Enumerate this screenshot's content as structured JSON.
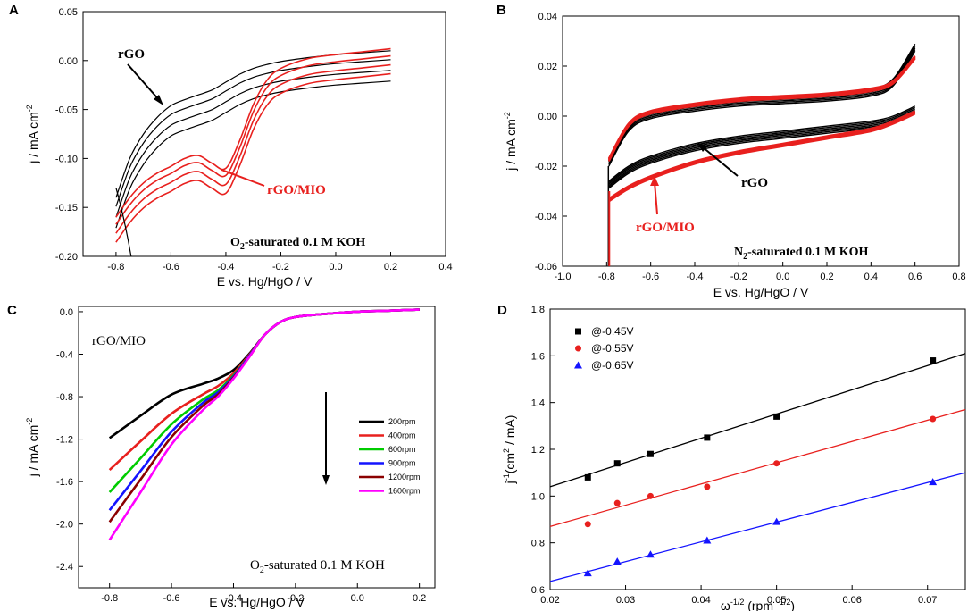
{
  "chart_data": [
    {
      "id": "A",
      "panel_label": "A",
      "type": "line",
      "xlabel": "E vs. Hg/HgO / V",
      "ylabel": "j / mA cm-2",
      "ylabel_main": "j / mA cm",
      "ylabel_sup": "-2",
      "xlim": [
        -0.92,
        0.4
      ],
      "ylim": [
        -0.2,
        0.05
      ],
      "xticks": [
        -0.8,
        -0.6,
        -0.4,
        -0.2,
        0.0,
        0.2,
        0.4
      ],
      "xtick_labels": [
        "-0.8",
        "-0.6",
        "-0.4",
        "-0.2",
        "0.0",
        "0.2",
        "0.4"
      ],
      "yticks": [
        -0.2,
        -0.15,
        -0.1,
        -0.05,
        0.0,
        0.05
      ],
      "ytick_labels": [
        "-0.20",
        "-0.15",
        "-0.10",
        "-0.05",
        "0.00",
        "0.05"
      ],
      "condition": "O2-saturated 0.1 M KOH",
      "condition_parts": [
        "O",
        "2",
        "-saturated 0.1 M KOH"
      ],
      "annotations": [
        "rGO",
        "rGO/MIO"
      ],
      "series": [
        {
          "name": "rGO",
          "color": "#000000",
          "x": [
            -0.8,
            -0.75,
            -0.7,
            -0.65,
            -0.6,
            -0.55,
            -0.5,
            -0.45,
            -0.4,
            -0.35,
            -0.3,
            -0.25,
            -0.2,
            -0.1,
            0.0,
            0.1,
            0.2
          ],
          "y": [
            -0.14,
            -0.1,
            -0.075,
            -0.058,
            -0.046,
            -0.04,
            -0.035,
            -0.03,
            -0.022,
            -0.014,
            -0.008,
            -0.004,
            -0.001,
            0.003,
            0.006,
            0.008,
            0.01
          ]
        },
        {
          "name": "rGO/MIO",
          "color": "#e8201e",
          "x": [
            -0.8,
            -0.75,
            -0.7,
            -0.65,
            -0.6,
            -0.55,
            -0.5,
            -0.45,
            -0.4,
            -0.35,
            -0.3,
            -0.25,
            -0.2,
            -0.1,
            0.0,
            0.1,
            0.2
          ],
          "y": [
            -0.16,
            -0.14,
            -0.125,
            -0.115,
            -0.108,
            -0.1,
            -0.097,
            -0.105,
            -0.11,
            -0.082,
            -0.045,
            -0.02,
            -0.008,
            0.002,
            0.006,
            0.009,
            0.012
          ]
        }
      ]
    },
    {
      "id": "B",
      "panel_label": "B",
      "type": "line",
      "xlabel": "E vs. Hg/HgO / V",
      "ylabel": "j / mA cm-2",
      "ylabel_main": "j / mA cm",
      "ylabel_sup": "-2",
      "xlim": [
        -1.0,
        0.8
      ],
      "ylim": [
        -0.06,
        0.04
      ],
      "xticks": [
        -1.0,
        -0.8,
        -0.6,
        -0.4,
        -0.2,
        0.0,
        0.2,
        0.4,
        0.6,
        0.8
      ],
      "xtick_labels": [
        "-1.0",
        "-0.8",
        "-0.6",
        "-0.4",
        "-0.2",
        "0.0",
        "0.2",
        "0.4",
        "0.6",
        "0.8"
      ],
      "yticks": [
        -0.06,
        -0.04,
        -0.02,
        0.0,
        0.02,
        0.04
      ],
      "ytick_labels": [
        "-0.06",
        "-0.04",
        "-0.02",
        "0.00",
        "0.02",
        "0.04"
      ],
      "condition": "N2-saturated 0.1 M KOH",
      "condition_parts": [
        "N",
        "2",
        "-saturated 0.1 M KOH"
      ],
      "annotations": [
        "rGO",
        "rGO/MIO"
      ],
      "series": [
        {
          "name": "rGO anodic",
          "color": "#000000",
          "x": [
            -0.79,
            -0.7,
            -0.6,
            -0.4,
            -0.2,
            0.0,
            0.2,
            0.4,
            0.5,
            0.6
          ],
          "y": [
            -0.02,
            -0.006,
            -0.001,
            0.002,
            0.004,
            0.005,
            0.006,
            0.008,
            0.012,
            0.026
          ]
        },
        {
          "name": "rGO cathodic",
          "color": "#000000",
          "x": [
            -0.79,
            -0.7,
            -0.6,
            -0.4,
            -0.2,
            0.0,
            0.2,
            0.4,
            0.5,
            0.6
          ],
          "y": [
            -0.026,
            -0.02,
            -0.016,
            -0.011,
            -0.008,
            -0.006,
            -0.004,
            -0.002,
            0.0,
            0.004
          ]
        },
        {
          "name": "rGO/MIO anodic",
          "color": "#e8201e",
          "x": [
            -0.79,
            -0.7,
            -0.6,
            -0.4,
            -0.2,
            0.0,
            0.2,
            0.4,
            0.5,
            0.6
          ],
          "y": [
            -0.018,
            -0.004,
            0.001,
            0.004,
            0.006,
            0.007,
            0.008,
            0.01,
            0.013,
            0.023
          ]
        },
        {
          "name": "rGO/MIO cathodic",
          "color": "#e8201e",
          "x": [
            -0.79,
            -0.7,
            -0.6,
            -0.4,
            -0.2,
            0.0,
            0.2,
            0.4,
            0.5,
            0.6
          ],
          "y": [
            -0.033,
            -0.028,
            -0.024,
            -0.018,
            -0.014,
            -0.011,
            -0.008,
            -0.005,
            -0.002,
            0.002
          ]
        }
      ]
    },
    {
      "id": "C",
      "panel_label": "C",
      "type": "line",
      "xlabel": "E vs. Hg/HgO / V",
      "ylabel": "j / mA cm-2",
      "ylabel_main": "j / mA cm",
      "ylabel_sup": "-2",
      "xlim": [
        -0.9,
        0.25
      ],
      "ylim": [
        -2.6,
        0.05
      ],
      "xticks": [
        -0.8,
        -0.6,
        -0.4,
        -0.2,
        0.0,
        0.2
      ],
      "xtick_labels": [
        "-0.8",
        "-0.6",
        "-0.4",
        "-0.2",
        "0.0",
        "0.2"
      ],
      "yticks": [
        -2.4,
        -2.0,
        -1.6,
        -1.2,
        -0.8,
        -0.4,
        0.0
      ],
      "ytick_labels": [
        "-2.4",
        "-2.0",
        "-1.6",
        "-1.2",
        "-0.8",
        "-0.4",
        "0.0"
      ],
      "sample_label": "rGO/MIO",
      "condition": "O2-saturated 0.1 M KOH",
      "condition_parts": [
        "O",
        "2",
        "-saturated 0.1 M KOH"
      ],
      "x": [
        -0.8,
        -0.7,
        -0.6,
        -0.5,
        -0.45,
        -0.4,
        -0.35,
        -0.3,
        -0.25,
        -0.2,
        -0.1,
        0.0,
        0.1,
        0.2
      ],
      "series": [
        {
          "name": "200rpm",
          "color": "#000000",
          "y": [
            -1.19,
            -0.98,
            -0.78,
            -0.68,
            -0.63,
            -0.55,
            -0.4,
            -0.22,
            -0.1,
            -0.05,
            -0.02,
            0.0,
            0.01,
            0.02
          ]
        },
        {
          "name": "400rpm",
          "color": "#e8201e",
          "y": [
            -1.49,
            -1.22,
            -0.96,
            -0.78,
            -0.7,
            -0.58,
            -0.41,
            -0.22,
            -0.1,
            -0.05,
            -0.02,
            0.0,
            0.01,
            0.02
          ]
        },
        {
          "name": "600rpm",
          "color": "#00cc00",
          "y": [
            -1.7,
            -1.38,
            -1.06,
            -0.83,
            -0.74,
            -0.6,
            -0.42,
            -0.22,
            -0.1,
            -0.05,
            -0.02,
            0.0,
            0.01,
            0.02
          ]
        },
        {
          "name": "900rpm",
          "color": "#1414ff",
          "y": [
            -1.87,
            -1.5,
            -1.13,
            -0.86,
            -0.76,
            -0.61,
            -0.42,
            -0.22,
            -0.1,
            -0.05,
            -0.02,
            0.0,
            0.01,
            0.02
          ]
        },
        {
          "name": "1200rpm",
          "color": "#8b0000",
          "y": [
            -1.98,
            -1.58,
            -1.18,
            -0.89,
            -0.78,
            -0.62,
            -0.43,
            -0.22,
            -0.1,
            -0.05,
            -0.02,
            0.0,
            0.01,
            0.02
          ]
        },
        {
          "name": "1600rpm",
          "color": "#ff00ff",
          "y": [
            -2.15,
            -1.7,
            -1.25,
            -0.93,
            -0.8,
            -0.63,
            -0.43,
            -0.22,
            -0.1,
            -0.05,
            -0.02,
            0.0,
            0.01,
            0.02
          ]
        }
      ]
    },
    {
      "id": "D",
      "panel_label": "D",
      "type": "scatter",
      "xlabel": "ω-1/2 (rpm -1/2)",
      "xlabel_parts": [
        "ω",
        "-1/2",
        " (rpm ",
        "-1/2",
        ")"
      ],
      "ylabel": "j-1(cm2 / mA)",
      "ylabel_parts": [
        "j",
        "-1",
        "(cm",
        "2",
        " / mA)"
      ],
      "xlim": [
        0.02,
        0.075
      ],
      "ylim": [
        0.6,
        1.8
      ],
      "xticks": [
        0.02,
        0.03,
        0.04,
        0.05,
        0.06,
        0.07
      ],
      "xtick_labels": [
        "0.02",
        "0.03",
        "0.04",
        "0.05",
        "0.06",
        "0.07"
      ],
      "yticks": [
        0.6,
        0.8,
        1.0,
        1.2,
        1.4,
        1.6,
        1.8
      ],
      "ytick_labels": [
        "0.6",
        "0.8",
        "1.0",
        "1.2",
        "1.4",
        "1.6",
        "1.8"
      ],
      "x": [
        0.025,
        0.0289,
        0.0333,
        0.0408,
        0.05,
        0.0707
      ],
      "series": [
        {
          "name": "@-0.45V",
          "color": "#000000",
          "marker": "square",
          "y": [
            1.08,
            1.14,
            1.18,
            1.25,
            1.34,
            1.58
          ],
          "fit": [
            1.04,
            1.61
          ]
        },
        {
          "name": "@-0.55V",
          "color": "#e8201e",
          "marker": "circle",
          "y": [
            0.88,
            0.97,
            1.0,
            1.04,
            1.14,
            1.33
          ],
          "fit": [
            0.87,
            1.37
          ]
        },
        {
          "name": "@-0.65V",
          "color": "#1414ff",
          "marker": "triangle",
          "y": [
            0.67,
            0.72,
            0.75,
            0.81,
            0.89,
            1.06
          ],
          "fit": [
            0.635,
            1.1
          ]
        }
      ]
    }
  ]
}
